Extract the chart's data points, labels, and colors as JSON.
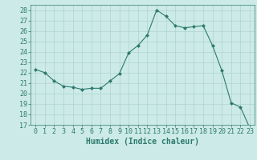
{
  "x": [
    0,
    1,
    2,
    3,
    4,
    5,
    6,
    7,
    8,
    9,
    10,
    11,
    12,
    13,
    14,
    15,
    16,
    17,
    18,
    19,
    20,
    21,
    22,
    23
  ],
  "y": [
    22.3,
    22.0,
    21.2,
    20.7,
    20.6,
    20.4,
    20.5,
    20.5,
    21.2,
    21.9,
    23.9,
    24.6,
    25.6,
    28.0,
    27.4,
    26.5,
    26.3,
    26.4,
    26.5,
    24.6,
    22.2,
    19.1,
    18.7,
    16.7
  ],
  "line_color": "#2d7a6e",
  "marker": "D",
  "marker_size": 2,
  "bg_color": "#cceae7",
  "grid_color": "#aed4d0",
  "xlabel": "Humidex (Indice chaleur)",
  "xlim": [
    -0.5,
    23.5
  ],
  "ylim": [
    17,
    28.5
  ],
  "yticks": [
    17,
    18,
    19,
    20,
    21,
    22,
    23,
    24,
    25,
    26,
    27,
    28
  ],
  "xticks": [
    0,
    1,
    2,
    3,
    4,
    5,
    6,
    7,
    8,
    9,
    10,
    11,
    12,
    13,
    14,
    15,
    16,
    17,
    18,
    19,
    20,
    21,
    22,
    23
  ],
  "tick_color": "#2d7a6e",
  "label_fontsize": 7,
  "tick_fontsize": 6
}
